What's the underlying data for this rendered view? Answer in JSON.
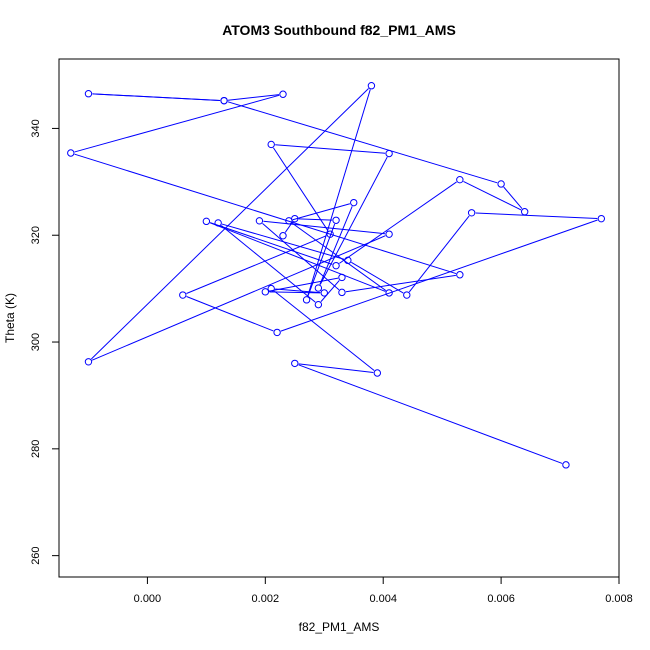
{
  "chart_data": {
    "type": "line",
    "title": "ATOM3 Southbound f82_PM1_AMS",
    "xlabel": "f82_PM1_AMS",
    "ylabel": "Theta (K)",
    "xlim": [
      -0.0015,
      0.008
    ],
    "ylim": [
      256,
      353
    ],
    "xticks": [
      "0.000",
      "0.002",
      "0.004",
      "0.006",
      "0.008"
    ],
    "xtick_values": [
      0.0,
      0.002,
      0.004,
      0.006,
      0.008
    ],
    "yticks": [
      "260",
      "280",
      "300",
      "320",
      "340"
    ],
    "ytick_values": [
      260,
      280,
      300,
      320,
      340
    ],
    "series_color": "#0000ff",
    "marker": "open-circle",
    "grid": false,
    "legend": "none",
    "series": [
      {
        "x": [
          0.0071,
          0.0025,
          0.0039,
          0.0021,
          0.003,
          0.002,
          0.0033,
          0.0029,
          0.0012,
          0.0034,
          0.0044,
          0.0055,
          0.0077,
          0.0022,
          0.0006,
          0.0031,
          0.0021,
          0.0041,
          0.0029,
          0.0035,
          0.0024,
          0.0041,
          0.001,
          0.0032,
          0.0053,
          0.0064,
          0.006,
          0.0013,
          -0.001,
          0.0013,
          0.0023,
          -0.0013,
          0.0053,
          0.0033,
          0.0019,
          0.0041,
          -0.001,
          0.0038,
          0.0027,
          0.0032,
          0.0025,
          0.0023
        ],
        "y": [
          277.0,
          296.0,
          294.2,
          310.0,
          309.2,
          309.4,
          312.1,
          307.0,
          322.3,
          315.3,
          308.8,
          324.2,
          323.1,
          301.8,
          308.8,
          320.2,
          337.0,
          335.3,
          310.1,
          326.1,
          322.7,
          309.2,
          322.6,
          314.3,
          330.4,
          324.4,
          329.6,
          345.2,
          346.5,
          345.2,
          346.4,
          335.4,
          312.6,
          309.3,
          322.7,
          320.2,
          296.3,
          348.0,
          307.9,
          322.8,
          323.1,
          319.9
        ]
      }
    ]
  }
}
